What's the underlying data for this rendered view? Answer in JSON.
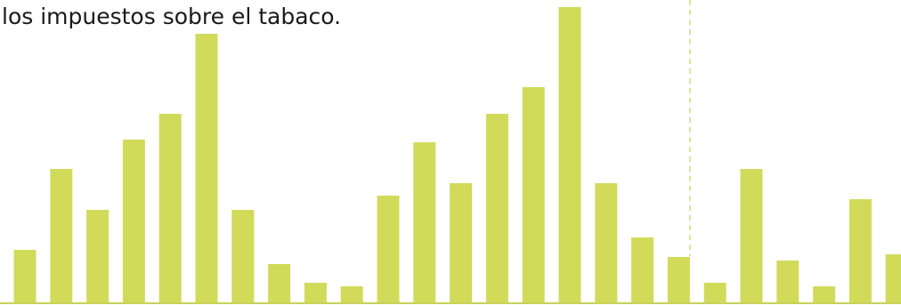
{
  "chart_data": {
    "type": "bar",
    "text": "los impuestos sobre el tabaco.",
    "values": [
      59,
      150,
      104,
      183,
      212,
      302,
      104,
      43,
      22,
      18,
      120,
      180,
      134,
      212,
      242,
      332,
      134,
      73,
      51,
      22,
      150,
      47,
      18,
      116,
      54
    ],
    "color": "#d2da5a",
    "ylim": [
      0,
      340
    ]
  }
}
